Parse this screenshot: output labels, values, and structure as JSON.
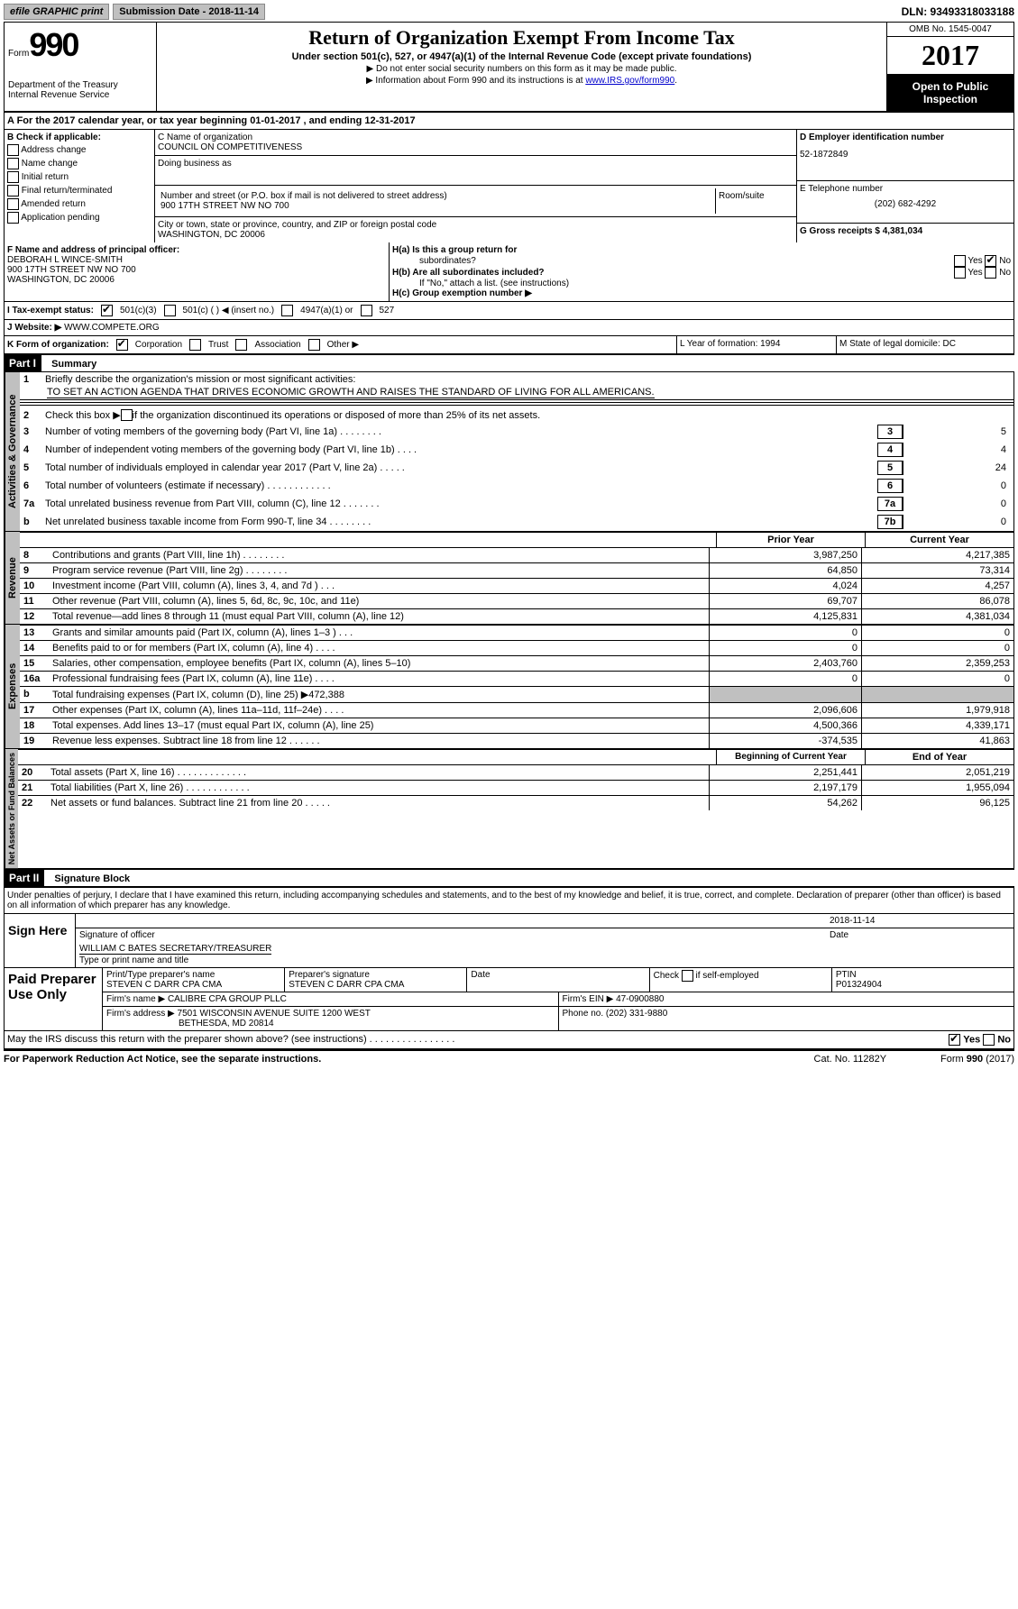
{
  "header": {
    "efile": "efile GRAPHIC print",
    "submission": "Submission Date - 2018-11-14",
    "dln": "DLN: 93493318033188"
  },
  "form_id": {
    "form_label": "Form",
    "form_number": "990",
    "dept1": "Department of the Treasury",
    "dept2": "Internal Revenue Service"
  },
  "title": {
    "main": "Return of Organization Exempt From Income Tax",
    "sub": "Under section 501(c), 527, or 4947(a)(1) of the Internal Revenue Code (except private foundations)",
    "line1": "▶ Do not enter social security numbers on this form as it may be made public.",
    "line2_pre": "▶ Information about Form 990 and its instructions is at ",
    "line2_link": "www.IRS.gov/form990"
  },
  "year_block": {
    "omb": "OMB No. 1545-0047",
    "year": "2017",
    "open1": "Open to Public",
    "open2": "Inspection"
  },
  "section_a": "A   For the 2017 calendar year, or tax year beginning 01-01-2017    , and ending 12-31-2017",
  "col_b": {
    "header": "B Check if applicable:",
    "items": [
      "Address change",
      "Name change",
      "Initial return",
      "Final return/terminated",
      "Amended return",
      "Application pending"
    ]
  },
  "col_c": {
    "name_label": "C Name of organization",
    "name": "COUNCIL ON COMPETITIVENESS",
    "dba_label": "Doing business as",
    "street_label": "Number and street (or P.O. box if mail is not delivered to street address)",
    "room_label": "Room/suite",
    "street": "900 17TH STREET NW NO 700",
    "city_label": "City or town, state or province, country, and ZIP or foreign postal code",
    "city": "WASHINGTON, DC  20006"
  },
  "col_d": {
    "ein_label": "D Employer identification number",
    "ein": "52-1872849",
    "phone_label": "E Telephone number",
    "phone": "(202) 682-4292",
    "gross_label": "G Gross receipts $ 4,381,034"
  },
  "row_f": {
    "f_label": "F  Name and address of principal officer:",
    "f_name": "DEBORAH L WINCE-SMITH",
    "f_addr1": "900 17TH STREET NW NO 700",
    "f_addr2": "WASHINGTON, DC  20006",
    "ha": "H(a)  Is this a group return for",
    "ha2": "subordinates?",
    "hb": "H(b)  Are all subordinates included?",
    "hb_note": "If \"No,\" attach a list. (see instructions)",
    "hc": "H(c)  Group exemption number ▶"
  },
  "row_i": {
    "label": "I  Tax-exempt status:",
    "o1": "501(c)(3)",
    "o2": "501(c) (   ) ◀ (insert no.)",
    "o3": "4947(a)(1) or",
    "o4": "527"
  },
  "row_j": {
    "label": "J  Website: ▶",
    "val": " WWW.COMPETE.ORG"
  },
  "row_k": {
    "label": "K Form of organization:",
    "o1": "Corporation",
    "o2": "Trust",
    "o3": "Association",
    "o4": "Other ▶",
    "l": "L Year of formation: 1994",
    "m": "M State of legal domicile: DC"
  },
  "part1": {
    "title": "Part I",
    "subtitle": "Summary",
    "gov_label": "Activities & Governance",
    "rev_label": "Revenue",
    "exp_label": "Expenses",
    "net_label": "Net Assets or Fund Balances",
    "l1": "Briefly describe the organization's mission or most significant activities:",
    "l1_text": "TO SET AN ACTION AGENDA THAT DRIVES ECONOMIC GROWTH AND RAISES THE STANDARD OF LIVING FOR ALL AMERICANS.",
    "l2": "Check this box ▶",
    "l2b": " if the organization discontinued its operations or disposed of more than 25% of its net assets.",
    "lines_boxed": [
      {
        "n": "3",
        "t": "Number of voting members of the governing body (Part VI, line 1a)   .   .   .   .   .   .   .   .",
        "box": "3",
        "v": "5"
      },
      {
        "n": "4",
        "t": "Number of independent voting members of the governing body (Part VI, line 1b)    .   .   .   .",
        "box": "4",
        "v": "4"
      },
      {
        "n": "5",
        "t": "Total number of individuals employed in calendar year 2017 (Part V, line 2a)   .   .   .   .   .",
        "box": "5",
        "v": "24"
      },
      {
        "n": "6",
        "t": "Total number of volunteers (estimate if necessary)   .   .   .   .   .   .   .   .   .   .   .   .",
        "box": "6",
        "v": "0"
      },
      {
        "n": "7a",
        "t": "Total unrelated business revenue from Part VIII, column (C), line 12   .   .   .   .   .   .   .",
        "box": "7a",
        "v": "0"
      },
      {
        "n": "b",
        "t": "Net unrelated business taxable income from Form 990-T, line 34   .   .   .   .   .   .   .   .",
        "box": "7b",
        "v": "0"
      }
    ],
    "prior": "Prior Year",
    "current": "Current Year",
    "revenue": [
      {
        "n": "8",
        "t": "Contributions and grants (Part VIII, line 1h)   .   .   .   .   .   .   .   .",
        "p": "3,987,250",
        "c": "4,217,385"
      },
      {
        "n": "9",
        "t": "Program service revenue (Part VIII, line 2g)   .   .   .   .   .   .   .   .",
        "p": "64,850",
        "c": "73,314"
      },
      {
        "n": "10",
        "t": "Investment income (Part VIII, column (A), lines 3, 4, and 7d )   .   .   .",
        "p": "4,024",
        "c": "4,257"
      },
      {
        "n": "11",
        "t": "Other revenue (Part VIII, column (A), lines 5, 6d, 8c, 9c, 10c, and 11e)",
        "p": "69,707",
        "c": "86,078"
      },
      {
        "n": "12",
        "t": "Total revenue—add lines 8 through 11 (must equal Part VIII, column (A), line 12)",
        "p": "4,125,831",
        "c": "4,381,034"
      }
    ],
    "expenses": [
      {
        "n": "13",
        "t": "Grants and similar amounts paid (Part IX, column (A), lines 1–3 )   .   .   .",
        "p": "0",
        "c": "0"
      },
      {
        "n": "14",
        "t": "Benefits paid to or for members (Part IX, column (A), line 4)   .   .   .   .",
        "p": "0",
        "c": "0"
      },
      {
        "n": "15",
        "t": "Salaries, other compensation, employee benefits (Part IX, column (A), lines 5–10)",
        "p": "2,403,760",
        "c": "2,359,253"
      },
      {
        "n": "16a",
        "t": "Professional fundraising fees (Part IX, column (A), line 11e)   .   .   .   .",
        "p": "0",
        "c": "0"
      }
    ],
    "l16b": "Total fundraising expenses (Part IX, column (D), line 25) ▶472,388",
    "expenses2": [
      {
        "n": "17",
        "t": "Other expenses (Part IX, column (A), lines 11a–11d, 11f–24e)   .   .   .   .",
        "p": "2,096,606",
        "c": "1,979,918"
      },
      {
        "n": "18",
        "t": "Total expenses. Add lines 13–17 (must equal Part IX, column (A), line 25)",
        "p": "4,500,366",
        "c": "4,339,171"
      },
      {
        "n": "19",
        "t": "Revenue less expenses. Subtract line 18 from line 12   .   .   .   .   .   .",
        "p": "-374,535",
        "c": "41,863"
      }
    ],
    "begin": "Beginning of Current Year",
    "end": "End of Year",
    "net": [
      {
        "n": "20",
        "t": "Total assets (Part X, line 16)   .   .   .   .   .   .   .   .   .   .   .   .   .",
        "p": "2,251,441",
        "c": "2,051,219"
      },
      {
        "n": "21",
        "t": "Total liabilities (Part X, line 26)   .   .   .   .   .   .   .   .   .   .   .   .",
        "p": "2,197,179",
        "c": "1,955,094"
      },
      {
        "n": "22",
        "t": "Net assets or fund balances. Subtract line 21 from line 20   .   .   .   .   .",
        "p": "54,262",
        "c": "96,125"
      }
    ]
  },
  "part2": {
    "title": "Part II",
    "subtitle": "Signature Block",
    "perjury": "Under penalties of perjury, I declare that I have examined this return, including accompanying schedules and statements, and to the best of my knowledge and belief, it is true, correct, and complete. Declaration of preparer (other than officer) is based on all information of which preparer has any knowledge.",
    "sign_here": "Sign Here",
    "sig_officer": "Signature of officer",
    "sig_date": "2018-11-14",
    "date_label": "Date",
    "officer_name": "WILLIAM C BATES SECRETARY/TREASURER",
    "name_label": "Type or print name and title",
    "paid": "Paid Preparer Use Only",
    "prep_name_label": "Print/Type preparer's name",
    "prep_name": "STEVEN C DARR CPA CMA",
    "prep_sig_label": "Preparer's signature",
    "prep_sig": "STEVEN C DARR CPA CMA",
    "prep_date": "Date",
    "self_emp": "Check         if self-employed",
    "ptin_label": "PTIN",
    "ptin": "P01324904",
    "firm_name_label": "Firm's name      ▶",
    "firm_name": "CALIBRE CPA GROUP PLLC",
    "firm_ein_label": "Firm's EIN ▶",
    "firm_ein": "47-0900880",
    "firm_addr_label": "Firm's address ▶",
    "firm_addr": "7501 WISCONSIN AVENUE SUITE 1200 WEST",
    "firm_addr2": "BETHESDA, MD  20814",
    "firm_phone_label": "Phone no.",
    "firm_phone": "(202) 331-9880"
  },
  "footer": {
    "discuss": "May the IRS discuss this return with the preparer shown above? (see instructions)   .   .   .   .   .   .   .   .   .   .   .   .   .   .   .   .",
    "yes": "Yes",
    "no": "No",
    "paperwork": "For Paperwork Reduction Act Notice, see the separate instructions.",
    "cat": "Cat. No. 11282Y",
    "form": "Form 990 (2017)"
  }
}
